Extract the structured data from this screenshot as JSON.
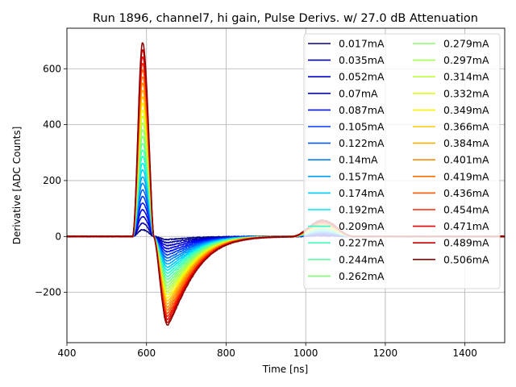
{
  "chart_data": {
    "type": "line",
    "title": "Run 1896, channel7, hi gain, Pulse Derivs. w/ 27.0 dB Attenuation",
    "xlabel": "Time [ns]",
    "ylabel": "Derivative [ADC Counts]",
    "xlim": [
      400,
      1500
    ],
    "ylim": [
      -380,
      745
    ],
    "xticks": [
      400,
      600,
      800,
      1000,
      1200,
      1400
    ],
    "yticks": [
      -200,
      0,
      200,
      400,
      600
    ],
    "ytick_labels": [
      "−200",
      "0",
      "200",
      "400",
      "600"
    ],
    "grid": true,
    "legend_placement": "upper-right",
    "legend_columns": 2,
    "pulse_shape": {
      "baseline": 0,
      "pulse_onset_ns": 565,
      "positive_peak_time_ns": 590,
      "zero_crossing_ns": 618,
      "negative_peak_time_ns": 653,
      "recovery_end_ns": 950,
      "secondary_bump_onset_ns": 965,
      "secondary_bump_peak_time_ns": 1025,
      "secondary_bump_end_ns": 1120
    },
    "series": [
      {
        "name": "0.017mA",
        "color": "#00007f",
        "peak": 24,
        "trough": -11,
        "bump": 2
      },
      {
        "name": "0.035mA",
        "color": "#0000a2",
        "peak": 47,
        "trough": -22,
        "bump": 4
      },
      {
        "name": "0.052mA",
        "color": "#0000c8",
        "peak": 71,
        "trough": -33,
        "bump": 6
      },
      {
        "name": "0.07mA",
        "color": "#0000ed",
        "peak": 95,
        "trough": -44,
        "bump": 8
      },
      {
        "name": "0.087mA",
        "color": "#0014ff",
        "peak": 119,
        "trough": -55,
        "bump": 10
      },
      {
        "name": "0.105mA",
        "color": "#0038ff",
        "peak": 143,
        "trough": -66,
        "bump": 12
      },
      {
        "name": "0.122mA",
        "color": "#005cff",
        "peak": 166,
        "trough": -77,
        "bump": 14
      },
      {
        "name": "0.14mA",
        "color": "#0080ff",
        "peak": 190,
        "trough": -88,
        "bump": 16
      },
      {
        "name": "0.157mA",
        "color": "#00a4ff",
        "peak": 214,
        "trough": -99,
        "bump": 18
      },
      {
        "name": "0.174mA",
        "color": "#00c8ff",
        "peak": 238,
        "trough": -110,
        "bump": 20
      },
      {
        "name": "0.192mA",
        "color": "#00e4f8",
        "peak": 262,
        "trough": -121,
        "bump": 22
      },
      {
        "name": "0.209mA",
        "color": "#29ffce",
        "peak": 286,
        "trough": -132,
        "bump": 24
      },
      {
        "name": "0.227mA",
        "color": "#3fffb7",
        "peak": 309,
        "trough": -143,
        "bump": 26
      },
      {
        "name": "0.244mA",
        "color": "#5affa4",
        "peak": 333,
        "trough": -154,
        "bump": 28
      },
      {
        "name": "0.262mA",
        "color": "#7dff7a",
        "peak": 357,
        "trough": -165,
        "bump": 30
      },
      {
        "name": "0.279mA",
        "color": "#8cff6d",
        "peak": 381,
        "trough": -176,
        "bump": 32
      },
      {
        "name": "0.297mA",
        "color": "#a4ff53",
        "peak": 405,
        "trough": -187,
        "bump": 34
      },
      {
        "name": "0.314mA",
        "color": "#c1ff36",
        "peak": 429,
        "trough": -198,
        "bump": 36
      },
      {
        "name": "0.332mA",
        "color": "#deff1a",
        "peak": 452,
        "trough": -209,
        "bump": 38
      },
      {
        "name": "0.349mA",
        "color": "#fbf100",
        "peak": 476,
        "trough": -220,
        "bump": 40
      },
      {
        "name": "0.366mA",
        "color": "#ffc800",
        "peak": 500,
        "trough": -231,
        "bump": 42
      },
      {
        "name": "0.384mA",
        "color": "#ffab00",
        "peak": 524,
        "trough": -242,
        "bump": 44
      },
      {
        "name": "0.401mA",
        "color": "#ff8e00",
        "peak": 548,
        "trough": -253,
        "bump": 46
      },
      {
        "name": "0.419mA",
        "color": "#ff7100",
        "peak": 571,
        "trough": -264,
        "bump": 48
      },
      {
        "name": "0.436mA",
        "color": "#ff5900",
        "peak": 595,
        "trough": -275,
        "bump": 50
      },
      {
        "name": "0.454mA",
        "color": "#ff2500",
        "peak": 619,
        "trough": -286,
        "bump": 52
      },
      {
        "name": "0.471mA",
        "color": "#ed0400",
        "peak": 643,
        "trough": -297,
        "bump": 54
      },
      {
        "name": "0.489mA",
        "color": "#c60000",
        "peak": 667,
        "trough": -308,
        "bump": 56
      },
      {
        "name": "0.506mA",
        "color": "#8d0000",
        "peak": 693,
        "trough": -318,
        "bump": 58
      }
    ]
  }
}
